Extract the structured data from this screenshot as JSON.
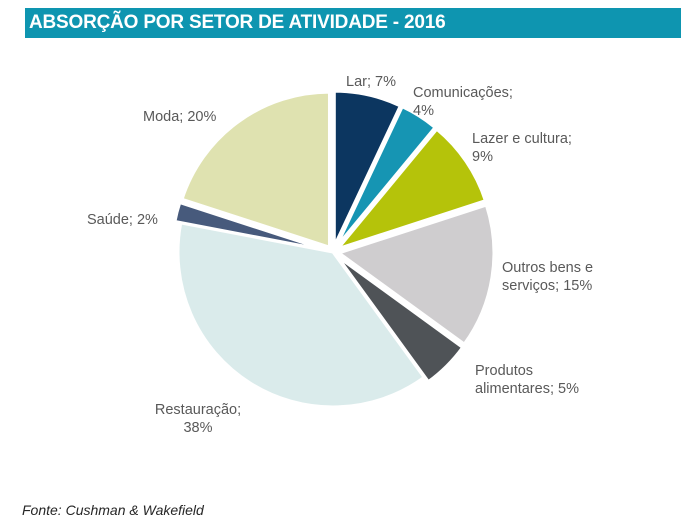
{
  "header": {
    "title": "ABSORÇÃO POR SETOR DE ATIVIDADE - 2016"
  },
  "chart_data": {
    "type": "pie",
    "title": "ABSORÇÃO POR SETOR DE ATIVIDADE - 2016",
    "unit": "%",
    "slices": [
      {
        "name": "Lar",
        "value": 7,
        "color": "#0c3660",
        "label_lines": [
          "Lar; 7%"
        ]
      },
      {
        "name": "Comunicações",
        "value": 4,
        "color": "#1695b3",
        "label_lines": [
          "Comunicações;",
          "4%"
        ]
      },
      {
        "name": "Lazer e cultura",
        "value": 9,
        "color": "#b5c30a",
        "label_lines": [
          "Lazer e cultura;",
          "9%"
        ]
      },
      {
        "name": "Outros bens e serviços",
        "value": 15,
        "color": "#cfcdcf",
        "label_lines": [
          "Outros bens e",
          "serviços; 15%"
        ]
      },
      {
        "name": "Produtos alimentares",
        "value": 5,
        "color": "#4f5357",
        "label_lines": [
          "Produtos",
          "alimentares; 5%"
        ]
      },
      {
        "name": "Restauração",
        "value": 38,
        "color": "#daebeb",
        "label_lines": [
          "Restauração;",
          "38%"
        ]
      },
      {
        "name": "Saúde",
        "value": 2,
        "color": "#475a7c",
        "label_lines": [
          "Saúde; 2%"
        ]
      },
      {
        "name": "Moda",
        "value": 20,
        "color": "#dfe2b0",
        "label_lines": [
          "Moda; 20%"
        ]
      }
    ]
  },
  "footer": {
    "source": "Fonte: Cushman & Wakefield"
  }
}
